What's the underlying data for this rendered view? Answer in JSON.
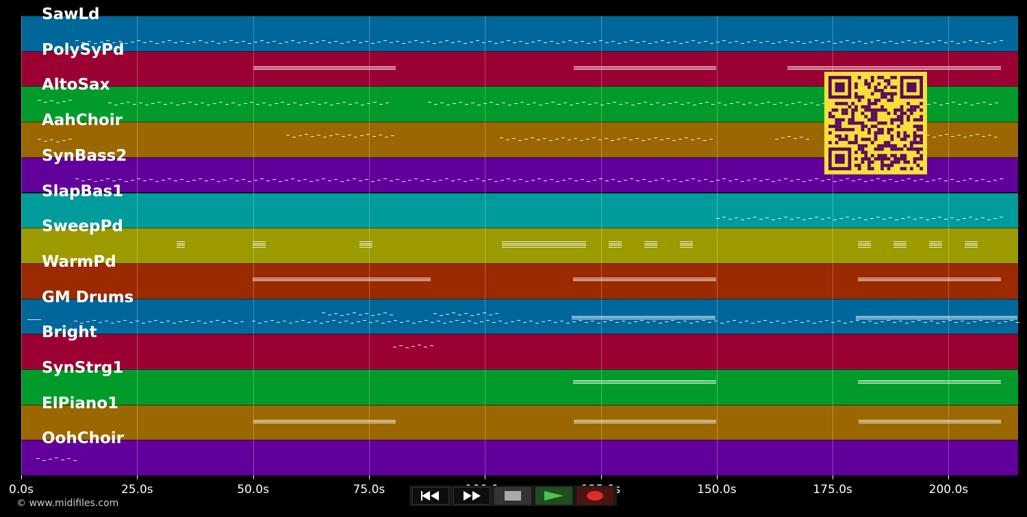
{
  "tracks": [
    {
      "name": "SawLd",
      "color": "#00679b"
    },
    {
      "name": "PolySyPd",
      "color": "#9b0032"
    },
    {
      "name": "AltoSax",
      "color": "#009b2a"
    },
    {
      "name": "AahChoir",
      "color": "#9b6700"
    },
    {
      "name": "SynBass2",
      "color": "#62009b"
    },
    {
      "name": "SlapBas1",
      "color": "#009b9b"
    },
    {
      "name": "SweepPd",
      "color": "#9b9b00"
    },
    {
      "name": "WarmPd",
      "color": "#9b2a00"
    },
    {
      "name": "GM Drums",
      "color": "#00679b"
    },
    {
      "name": "Bright",
      "color": "#9b0032"
    },
    {
      "name": "SynStrg1",
      "color": "#009b2a"
    },
    {
      "name": "ElPiano1",
      "color": "#9b6700"
    },
    {
      "name": "OohChoir",
      "color": "#62009b"
    }
  ],
  "timeline": {
    "ticks": [
      "0.0s",
      "25.0s",
      "50.0s",
      "75.0s",
      "100.0s",
      "125.0s",
      "150.0s",
      "175.0s",
      "200.0s"
    ],
    "tick_seconds": [
      0,
      25,
      50,
      75,
      100,
      125,
      150,
      175,
      200
    ],
    "max_seconds": 215
  },
  "footer": {
    "copyright": "© www.midifiles.com"
  },
  "transport": {
    "rewind_icon": "rewind-icon",
    "forward_icon": "fast-forward-icon",
    "stop_icon": "stop-icon",
    "play_icon": "play-icon",
    "record_icon": "record-icon"
  },
  "qr": {
    "color": "#f5e03a",
    "module_color": "#5a0a5e"
  }
}
